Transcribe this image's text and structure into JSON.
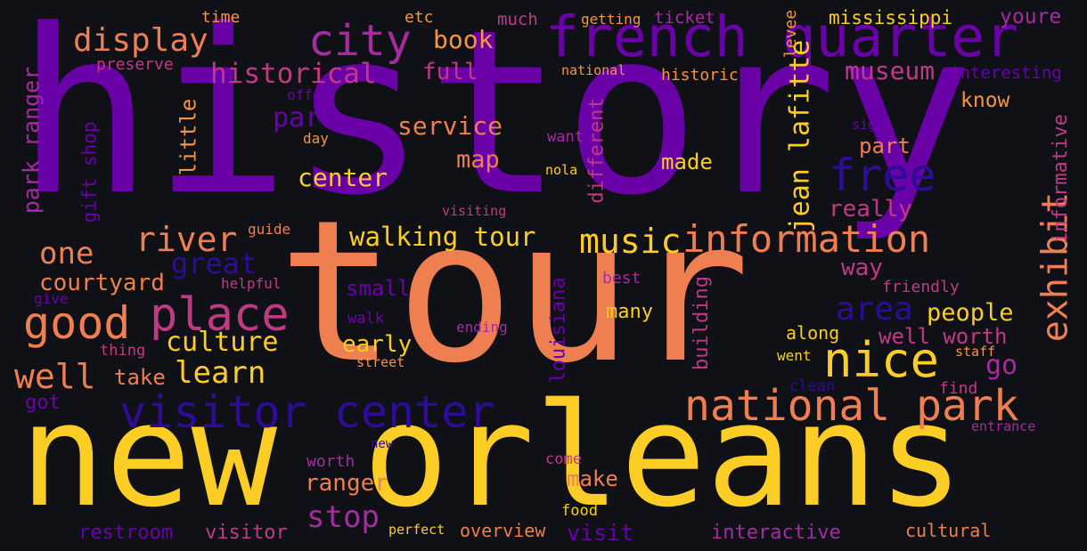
{
  "words": [
    {
      "text": "history",
      "color": "#6a00a8",
      "vertical": false
    },
    {
      "text": "tour",
      "color": "#ef7e50",
      "vertical": false
    },
    {
      "text": "new orleans",
      "color": "#fccd25",
      "vertical": false
    },
    {
      "text": "french quarter",
      "color": "#6a00a8",
      "vertical": false
    },
    {
      "text": "visitor center",
      "color": "#2e0c96",
      "vertical": false
    },
    {
      "text": "national park",
      "color": "#ef7e50",
      "vertical": false
    },
    {
      "text": "place",
      "color": "#c03a83",
      "vertical": false
    },
    {
      "text": "nice",
      "color": "#fccd25",
      "vertical": false
    },
    {
      "text": "city",
      "color": "#a42ca0",
      "vertical": false
    },
    {
      "text": "information",
      "color": "#ef7e50",
      "vertical": false
    },
    {
      "text": "good",
      "color": "#ef7e50",
      "vertical": false
    },
    {
      "text": "music",
      "color": "#fccd25",
      "vertical": false
    },
    {
      "text": "free",
      "color": "#2e0c96",
      "vertical": false
    },
    {
      "text": "display",
      "color": "#ef7e50",
      "vertical": false
    },
    {
      "text": "historical",
      "color": "#c03a83",
      "vertical": false
    },
    {
      "text": "river",
      "color": "#ef7e50",
      "vertical": false
    },
    {
      "text": "walking tour",
      "color": "#fccd25",
      "vertical": false
    },
    {
      "text": "exhibit",
      "color": "#ef7e50",
      "vertical": true
    },
    {
      "text": "jean lafitte",
      "color": "#fccd25",
      "vertical": true
    },
    {
      "text": "park ranger",
      "color": "#a42ca0",
      "vertical": true
    },
    {
      "text": "one",
      "color": "#ef7e50",
      "vertical": false
    },
    {
      "text": "great",
      "color": "#2e0c96",
      "vertical": false
    },
    {
      "text": "area",
      "color": "#2e0c96",
      "vertical": false
    },
    {
      "text": "well",
      "color": "#ef7e50",
      "vertical": false
    },
    {
      "text": "learn",
      "color": "#fccd25",
      "vertical": false
    },
    {
      "text": "culture",
      "color": "#fccd25",
      "vertical": false
    },
    {
      "text": "stop",
      "color": "#a42ca0",
      "vertical": false
    },
    {
      "text": "go",
      "color": "#a42ca0",
      "vertical": false
    },
    {
      "text": "book",
      "color": "#f89441",
      "vertical": false
    },
    {
      "text": "museum",
      "color": "#c03a83",
      "vertical": false
    },
    {
      "text": "full",
      "color": "#c03a83",
      "vertical": false
    },
    {
      "text": "park",
      "color": "#6a00a8",
      "vertical": false
    },
    {
      "text": "service",
      "color": "#ef7e50",
      "vertical": false
    },
    {
      "text": "center",
      "color": "#fccd25",
      "vertical": false
    },
    {
      "text": "map",
      "color": "#ef7e50",
      "vertical": false
    },
    {
      "text": "made",
      "color": "#fccd25",
      "vertical": false
    },
    {
      "text": "part",
      "color": "#ef7e50",
      "vertical": false
    },
    {
      "text": "really",
      "color": "#c03a83",
      "vertical": false
    },
    {
      "text": "way",
      "color": "#c03a83",
      "vertical": false
    },
    {
      "text": "people",
      "color": "#fccd25",
      "vertical": false
    },
    {
      "text": "well worth",
      "color": "#c03a83",
      "vertical": false
    },
    {
      "text": "courtyard",
      "color": "#ef7e50",
      "vertical": false
    },
    {
      "text": "small",
      "color": "#6a00a8",
      "vertical": false
    },
    {
      "text": "ranger",
      "color": "#ef7e50",
      "vertical": false
    },
    {
      "text": "early",
      "color": "#fccd25",
      "vertical": false
    },
    {
      "text": "take",
      "color": "#ef7e50",
      "vertical": false
    },
    {
      "text": "many",
      "color": "#fccd25",
      "vertical": false
    },
    {
      "text": "make",
      "color": "#ef7e50",
      "vertical": false
    },
    {
      "text": "visit",
      "color": "#6a00a8",
      "vertical": false
    },
    {
      "text": "know",
      "color": "#f89441",
      "vertical": false
    },
    {
      "text": "mississippi",
      "color": "#fccd25",
      "vertical": false
    },
    {
      "text": "youre",
      "color": "#a42ca0",
      "vertical": false
    },
    {
      "text": "historic",
      "color": "#f89441",
      "vertical": false
    },
    {
      "text": "interesting",
      "color": "#6a00a8",
      "vertical": false
    },
    {
      "text": "informative",
      "color": "#c03a83",
      "vertical": true
    },
    {
      "text": "little",
      "color": "#f89441",
      "vertical": true
    },
    {
      "text": "different",
      "color": "#c03a83",
      "vertical": true
    },
    {
      "text": "gift shop",
      "color": "#6a00a8",
      "vertical": true
    },
    {
      "text": "louisiana",
      "color": "#6a00a8",
      "vertical": true
    },
    {
      "text": "building",
      "color": "#c03a83",
      "vertical": true
    },
    {
      "text": "levee",
      "color": "#f89441",
      "vertical": true
    },
    {
      "text": "got",
      "color": "#6a00a8",
      "vertical": false
    },
    {
      "text": "restroom",
      "color": "#6a00a8",
      "vertical": false
    },
    {
      "text": "visitor",
      "color": "#c03a83",
      "vertical": false
    },
    {
      "text": "overview",
      "color": "#ef7e50",
      "vertical": false
    },
    {
      "text": "interactive",
      "color": "#a42ca0",
      "vertical": false
    },
    {
      "text": "cultural",
      "color": "#ef7e50",
      "vertical": false
    },
    {
      "text": "friendly",
      "color": "#c03a83",
      "vertical": false
    },
    {
      "text": "along",
      "color": "#fccd25",
      "vertical": false
    },
    {
      "text": "find",
      "color": "#c03a83",
      "vertical": false
    },
    {
      "text": "preserve",
      "color": "#c03a83",
      "vertical": false
    },
    {
      "text": "time",
      "color": "#f89441",
      "vertical": false
    },
    {
      "text": "etc",
      "color": "#f89441",
      "vertical": false
    },
    {
      "text": "much",
      "color": "#c03a83",
      "vertical": false
    },
    {
      "text": "getting",
      "color": "#f89441",
      "vertical": false
    },
    {
      "text": "ticket",
      "color": "#a42ca0",
      "vertical": false
    },
    {
      "text": "offer",
      "color": "#6a00a8",
      "vertical": false
    },
    {
      "text": "national",
      "color": "#f89441",
      "vertical": false
    },
    {
      "text": "day",
      "color": "#f89441",
      "vertical": false
    },
    {
      "text": "want",
      "color": "#a42ca0",
      "vertical": false
    },
    {
      "text": "nola",
      "color": "#fccd25",
      "vertical": false
    },
    {
      "text": "sign",
      "color": "#6a00a8",
      "vertical": false
    },
    {
      "text": "visiting",
      "color": "#c03a83",
      "vertical": false
    },
    {
      "text": "guide",
      "color": "#ef7e50",
      "vertical": false
    },
    {
      "text": "give",
      "color": "#6a00a8",
      "vertical": false
    },
    {
      "text": "helpful",
      "color": "#c03a83",
      "vertical": false
    },
    {
      "text": "best",
      "color": "#a42ca0",
      "vertical": false
    },
    {
      "text": "walk",
      "color": "#6a00a8",
      "vertical": false
    },
    {
      "text": "ending",
      "color": "#a42ca0",
      "vertical": false
    },
    {
      "text": "thing",
      "color": "#c03a83",
      "vertical": false
    },
    {
      "text": "street",
      "color": "#f89441",
      "vertical": false
    },
    {
      "text": "went",
      "color": "#fccd25",
      "vertical": false
    },
    {
      "text": "staff",
      "color": "#f89441",
      "vertical": false
    },
    {
      "text": "clean",
      "color": "#2e0c96",
      "vertical": false
    },
    {
      "text": "entrance",
      "color": "#a42ca0",
      "vertical": false
    },
    {
      "text": "new",
      "color": "#2e0c96",
      "vertical": false
    },
    {
      "text": "worth",
      "color": "#a42ca0",
      "vertical": false
    },
    {
      "text": "come",
      "color": "#c03a83",
      "vertical": false
    },
    {
      "text": "food",
      "color": "#fccd25",
      "vertical": false
    },
    {
      "text": "perfect",
      "color": "#fccd25",
      "vertical": false
    }
  ]
}
